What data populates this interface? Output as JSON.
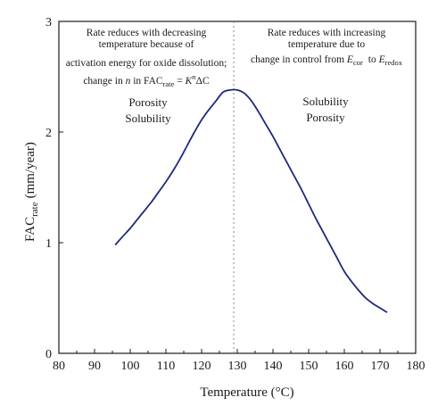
{
  "chart_data": {
    "type": "line",
    "xlabel": "Temperature (°C)",
    "ylabel": "FAC",
    "ylabel_sub": "rate",
    "ylabel_unit": "(mm/year)",
    "xlim": [
      80,
      180
    ],
    "ylim": [
      0,
      3
    ],
    "xticks": [
      80,
      90,
      100,
      110,
      120,
      130,
      140,
      150,
      160,
      170,
      180
    ],
    "yticks": [
      0,
      1,
      2,
      3
    ],
    "grid": false,
    "line_color": "#1f2a7a",
    "divider_x": 129,
    "series": [
      {
        "x": [
          95.8,
          98,
          100,
          102,
          104,
          106,
          108,
          110,
          112,
          114,
          116,
          118,
          120,
          122,
          124,
          126,
          128,
          130,
          132,
          134,
          136,
          138,
          140,
          142,
          144,
          146,
          148,
          150,
          152,
          154,
          156,
          158,
          160,
          162,
          164,
          166,
          168,
          170,
          172
        ],
        "y": [
          0.98,
          1.06,
          1.13,
          1.21,
          1.29,
          1.37,
          1.46,
          1.55,
          1.65,
          1.76,
          1.88,
          2.0,
          2.11,
          2.2,
          2.28,
          2.36,
          2.38,
          2.38,
          2.35,
          2.28,
          2.18,
          2.07,
          1.96,
          1.84,
          1.72,
          1.6,
          1.48,
          1.35,
          1.22,
          1.1,
          0.98,
          0.86,
          0.74,
          0.65,
          0.57,
          0.5,
          0.45,
          0.41,
          0.37
        ]
      }
    ],
    "annotations": {
      "left": {
        "line1": "Rate reduces with decreasing",
        "line2": "temperature because of",
        "line3": "activation energy for oxide dissolution;",
        "line4_pre": "change in",
        "line4_n": "n",
        "line4_in": "in FAC",
        "line4_sub": "rate",
        "line4_eq": "=",
        "line4_K": "K",
        "line4_sup": "n",
        "line4_end": "ΔC"
      },
      "right": {
        "line1": "Rate reduces with increasing",
        "line2": "temperature due to",
        "line3_pre": "change in control from",
        "line3_E1": "E",
        "line3_sub1": "cor",
        "line3_to": "to",
        "line3_E2": "E",
        "line3_sub2": "redox"
      },
      "left_region": [
        "Porosity",
        "Solubility"
      ],
      "right_region": [
        "Solubility",
        "Porosity"
      ]
    }
  }
}
